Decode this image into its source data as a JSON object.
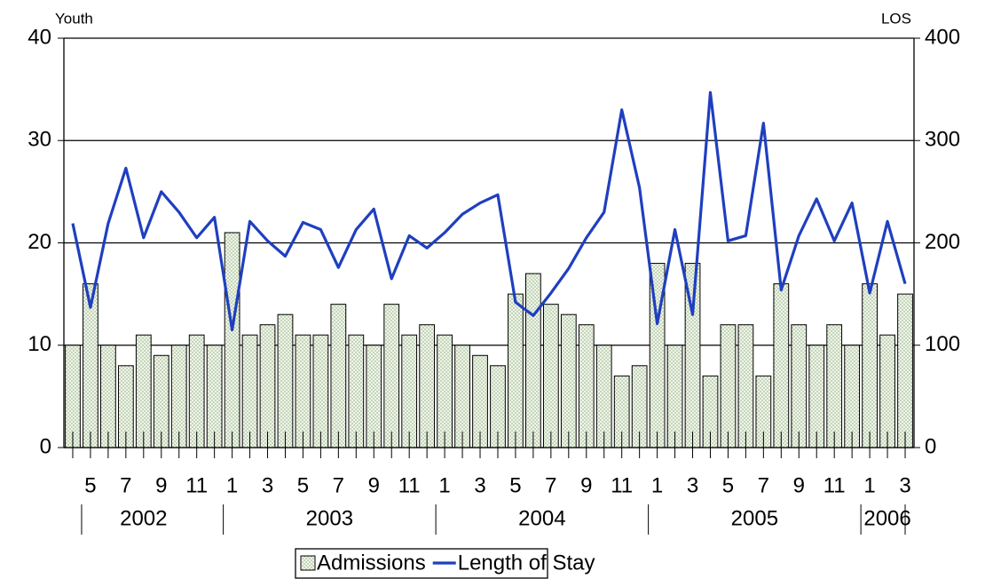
{
  "chart_data": {
    "type": "bar_line",
    "y_axis_label": "Youth",
    "y2_axis_label": "LOS",
    "categories": [
      null,
      "5",
      null,
      "7",
      null,
      "9",
      null,
      "11",
      null,
      "1",
      null,
      "3",
      null,
      "5",
      null,
      "7",
      null,
      "9",
      null,
      "11",
      null,
      "1",
      null,
      "3",
      null,
      "5",
      null,
      "7",
      null,
      "9",
      null,
      "11",
      null,
      "1",
      null,
      "3",
      null,
      "5",
      null,
      "7",
      null,
      "9",
      null,
      "11",
      null,
      "1",
      null,
      "3"
    ],
    "year_labels": [
      "2002",
      "2003",
      "2004",
      "2005",
      "2006"
    ],
    "series": [
      {
        "name": "Admissions",
        "type": "bar",
        "color": "#e2efd9",
        "values": [
          10,
          16,
          10,
          8,
          11,
          9,
          10,
          11,
          10,
          21,
          11,
          12,
          13,
          11,
          11,
          14,
          11,
          10,
          14,
          11,
          12,
          11,
          10,
          9,
          8,
          15,
          17,
          14,
          13,
          12,
          10,
          7,
          8,
          18,
          10,
          18,
          7,
          12,
          12,
          7,
          16,
          12,
          10,
          12,
          10,
          16,
          11,
          15
        ]
      },
      {
        "name": "Length of Stay",
        "type": "line",
        "axis": "y2",
        "color": "#1f3fbf",
        "values": [
          219,
          137,
          219,
          273,
          205,
          250,
          230,
          205,
          225,
          115,
          221,
          202,
          187,
          220,
          213,
          176,
          213,
          233,
          165,
          207,
          195,
          210,
          228,
          239,
          247,
          142,
          129,
          151,
          175,
          205,
          230,
          330,
          254,
          121,
          213,
          130,
          347,
          202,
          207,
          317,
          154,
          207,
          243,
          202,
          239,
          151,
          221,
          160
        ]
      }
    ],
    "ylim": [
      0,
      40
    ],
    "yticks": [
      0,
      10,
      20,
      30,
      40
    ],
    "y2lim": [
      0,
      400
    ],
    "y2ticks": [
      0,
      100,
      200,
      300,
      400
    ],
    "grid": true,
    "legend": "bottom"
  }
}
